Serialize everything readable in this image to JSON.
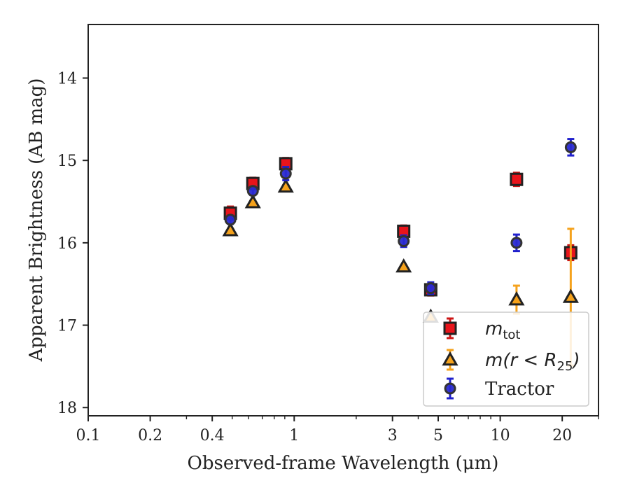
{
  "chart_data": {
    "type": "scatter",
    "xscale": "log",
    "yaxis_inverted": true,
    "xlim": [
      0.1,
      30
    ],
    "ylim": [
      18.1,
      13.35
    ],
    "xlabel": "Observed-frame Wavelength (μm)",
    "ylabel": "Apparent Brightness (AB mag)",
    "xticks": [
      {
        "value": 0.1,
        "label": "0.1"
      },
      {
        "value": 0.2,
        "label": "0.2"
      },
      {
        "value": 0.4,
        "label": "0.4"
      },
      {
        "value": 1,
        "label": "1"
      },
      {
        "value": 3,
        "label": "3"
      },
      {
        "value": 5,
        "label": "5"
      },
      {
        "value": 10,
        "label": "10"
      },
      {
        "value": 20,
        "label": "20"
      }
    ],
    "xminor": [
      0.3,
      0.5,
      0.6,
      0.7,
      0.8,
      0.9,
      2,
      4,
      6,
      7,
      8,
      9,
      30
    ],
    "yticks": [
      14,
      15,
      16,
      17,
      18
    ],
    "grid": false,
    "legend_position": "lower-right",
    "series": [
      {
        "name": "m_tot",
        "label_main": "m",
        "label_sub": "tot",
        "marker": "square",
        "face_color": "#e8141b",
        "edge_color": "#222222",
        "err_color": "#cc1515",
        "points": [
          {
            "x": 0.49,
            "y": 15.64,
            "yerr": 0.08
          },
          {
            "x": 0.63,
            "y": 15.28,
            "yerr": 0.07
          },
          {
            "x": 0.91,
            "y": 15.04,
            "yerr": 0.07
          },
          {
            "x": 3.4,
            "y": 15.86,
            "yerr": 0.07
          },
          {
            "x": 4.6,
            "y": 16.57,
            "yerr": 0.07
          },
          {
            "x": 12.0,
            "y": 15.23,
            "yerr": 0.08
          },
          {
            "x": 22.0,
            "y": 16.12,
            "yerr": 0.09
          }
        ]
      },
      {
        "name": "m(r < R_25)",
        "label_main": "m(r < R",
        "label_sub": "25",
        "label_tail": ")",
        "marker": "triangle",
        "face_color": "#f5a21c",
        "edge_color": "#222222",
        "err_color": "#f5a21c",
        "points": [
          {
            "x": 0.49,
            "y": 15.85,
            "yerr": 0.02
          },
          {
            "x": 0.63,
            "y": 15.51,
            "yerr": 0.02
          },
          {
            "x": 0.91,
            "y": 15.32,
            "yerr": 0.02
          },
          {
            "x": 3.4,
            "y": 16.29,
            "yerr": 0.02
          },
          {
            "x": 4.6,
            "y": 16.9,
            "yerr": 0.03
          },
          {
            "x": 12.0,
            "y": 16.69,
            "yerr": 0.17
          },
          {
            "x": 22.0,
            "y": 16.66,
            "yerr": 0.83
          }
        ]
      },
      {
        "name": "Tractor",
        "label_main": "Tractor",
        "marker": "circle",
        "face_color": "#2a2ad0",
        "edge_color": "#333333",
        "err_color": "#2020cc",
        "points": [
          {
            "x": 0.49,
            "y": 15.72,
            "yerr": 0.05
          },
          {
            "x": 0.63,
            "y": 15.37,
            "yerr": 0.05
          },
          {
            "x": 0.91,
            "y": 15.16,
            "yerr": 0.08
          },
          {
            "x": 3.4,
            "y": 15.98,
            "yerr": 0.07
          },
          {
            "x": 4.6,
            "y": 16.55,
            "yerr": 0.07
          },
          {
            "x": 12.0,
            "y": 16.0,
            "yerr": 0.1
          },
          {
            "x": 22.0,
            "y": 14.84,
            "yerr": 0.1
          }
        ]
      }
    ]
  }
}
